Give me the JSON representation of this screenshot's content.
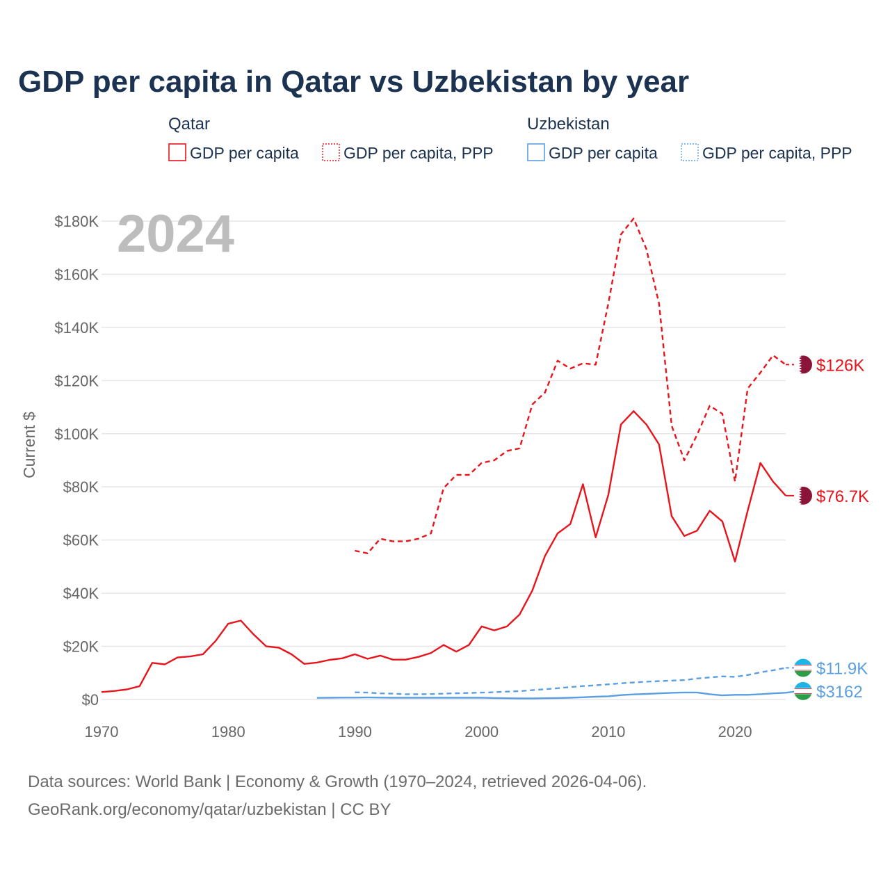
{
  "chart_data": {
    "type": "line",
    "title": "GDP per capita in Qatar vs Uzbekistan by year",
    "ylabel": "Current $",
    "xlabel": "",
    "year_label": "2024",
    "xlim": [
      1970,
      2024
    ],
    "ylim": [
      0,
      180000
    ],
    "x_ticks": [
      1970,
      1980,
      1990,
      2000,
      2010,
      2020
    ],
    "y_ticks": [
      {
        "value": 0,
        "label": "$0"
      },
      {
        "value": 20000,
        "label": "$20K"
      },
      {
        "value": 40000,
        "label": "$40K"
      },
      {
        "value": 60000,
        "label": "$60K"
      },
      {
        "value": 80000,
        "label": "$80K"
      },
      {
        "value": 100000,
        "label": "$100K"
      },
      {
        "value": 120000,
        "label": "$120K"
      },
      {
        "value": 140000,
        "label": "$140K"
      },
      {
        "value": 160000,
        "label": "$160K"
      },
      {
        "value": 180000,
        "label": "$180K"
      }
    ],
    "legend": [
      {
        "group": "Qatar",
        "items": [
          "GDP per capita",
          "GDP per capita, PPP"
        ]
      },
      {
        "group": "Uzbekistan",
        "items": [
          "GDP per capita",
          "GDP per capita, PPP"
        ]
      }
    ],
    "series": [
      {
        "country": "Qatar",
        "name": "GDP per capita",
        "color": "#e8141b",
        "dashed": false,
        "end_label": "$76.7K",
        "flag": "qatar",
        "start": 1970,
        "values": [
          2800,
          3200,
          3800,
          5000,
          13800,
          13200,
          15800,
          16200,
          17000,
          22000,
          28500,
          29700,
          24500,
          20000,
          19500,
          17000,
          13400,
          13900,
          14900,
          15500,
          17000,
          15300,
          16500,
          15000,
          15000,
          16000,
          17500,
          20500,
          18000,
          20500,
          27500,
          26000,
          27500,
          32000,
          41000,
          54000,
          62500,
          66000,
          81000,
          61000,
          77000,
          103500,
          108500,
          103500,
          96000,
          69000,
          61500,
          63500,
          71000,
          67000,
          51900,
          71000,
          89000,
          82000,
          76700
        ]
      },
      {
        "country": "Qatar",
        "name": "GDP per capita, PPP",
        "color": "#e8141b",
        "dashed": true,
        "end_label": "$126K",
        "flag": "qatar",
        "start": 1990,
        "values": [
          56000,
          55000,
          60500,
          59500,
          59500,
          60500,
          62500,
          79500,
          84500,
          84500,
          89000,
          90000,
          93500,
          94500,
          111000,
          115500,
          127500,
          124500,
          126500,
          126000,
          149000,
          175000,
          181000,
          169500,
          149000,
          103000,
          90000,
          99500,
          110500,
          107500,
          82000,
          117000,
          123000,
          129500,
          126000
        ]
      },
      {
        "country": "Uzbekistan",
        "name": "GDP per capita",
        "color": "#5b9fe3",
        "dashed": false,
        "end_label": "$3162",
        "flag": "uzbekistan",
        "start": 1987,
        "values": [
          600,
          650,
          700,
          700,
          750,
          700,
          650,
          650,
          650,
          650,
          650,
          650,
          650,
          650,
          560,
          470,
          400,
          400,
          470,
          550,
          650,
          850,
          1050,
          1200,
          1650,
          1900,
          2100,
          2300,
          2500,
          2650,
          2650,
          2000,
          1550,
          1750,
          1760,
          2000,
          2300,
          2550,
          3162
        ]
      },
      {
        "country": "Uzbekistan",
        "name": "GDP per capita, PPP",
        "color": "#5b9fe3",
        "dashed": true,
        "end_label": "$11.9K",
        "flag": "uzbekistan",
        "start": 1990,
        "values": [
          2700,
          2600,
          2300,
          2200,
          2000,
          2000,
          2050,
          2200,
          2350,
          2450,
          2600,
          2750,
          2950,
          3150,
          3500,
          3850,
          4250,
          4650,
          5050,
          5350,
          5700,
          6100,
          6400,
          6700,
          6900,
          7100,
          7300,
          7900,
          8300,
          8700,
          8500,
          9200,
          10200,
          11000,
          11900
        ]
      }
    ]
  },
  "footer": {
    "line1": "Data sources: World Bank | Economy & Growth (1970–2024, retrieved 2026-04-06).",
    "line2": "GeoRank.org/economy/qatar/uzbekistan | CC BY"
  }
}
